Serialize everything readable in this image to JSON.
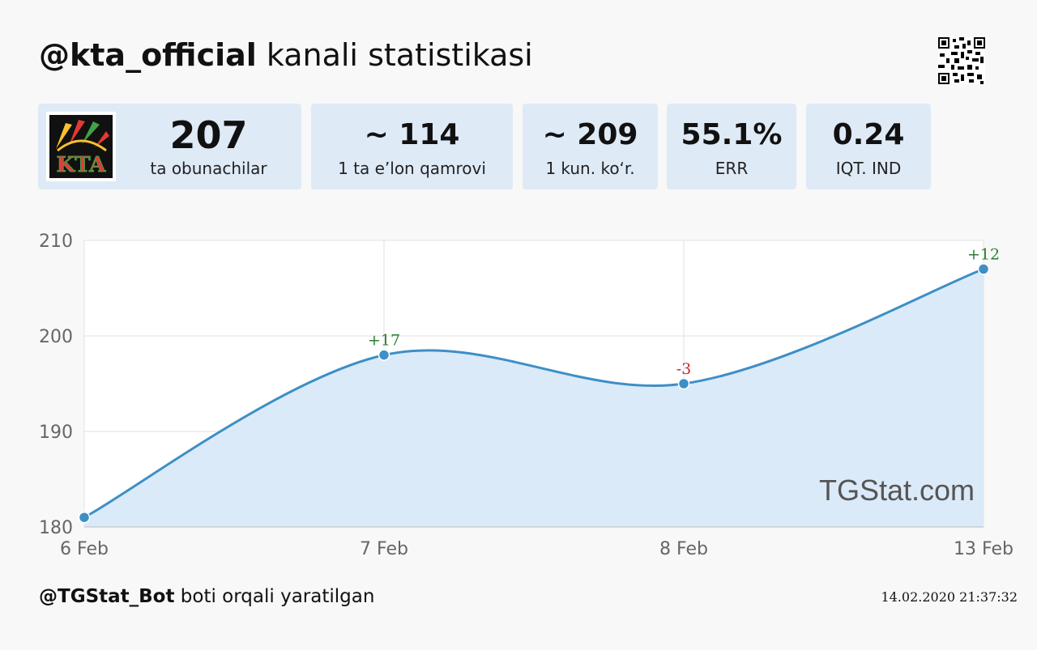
{
  "header": {
    "channel": "@kta_official",
    "title_rest": " kanali statistikasi"
  },
  "logo": {
    "text": "KTA",
    "colors": [
      "#e53935",
      "#fbc02d",
      "#43a047",
      "#1e88e5"
    ]
  },
  "stats": [
    {
      "value": "207",
      "label": "ta obunachilar"
    },
    {
      "value": "~ 114",
      "label": "1 ta e’lon qamrovi"
    },
    {
      "value": "~ 209",
      "label": "1 kun. koʻr."
    },
    {
      "value": "55.1%",
      "label": "ERR"
    },
    {
      "value": "0.24",
      "label": "IQT. IND"
    }
  ],
  "chart_data": {
    "type": "area",
    "categories": [
      "6 Feb",
      "7 Feb",
      "8 Feb",
      "13 Feb"
    ],
    "series": [
      {
        "values": [
          181,
          198,
          195,
          207
        ]
      }
    ],
    "annotations": [
      {
        "index": 1,
        "text": "+17",
        "color": "#2e7d32"
      },
      {
        "index": 2,
        "text": "-3",
        "color": "#c62828"
      },
      {
        "index": 3,
        "text": "+12",
        "color": "#2e7d32"
      }
    ],
    "ylim": [
      180,
      210
    ],
    "yticks": [
      180,
      190,
      200,
      210
    ],
    "grid": true,
    "line_color": "#3d8fc6",
    "fill_color": "#dbeaf8",
    "watermark": "TGStat.com"
  },
  "footer": {
    "bot": "@TGStat_Bot",
    "text": " boti orqali yaratilgan",
    "timestamp": "14.02.2020 21:37:32"
  }
}
